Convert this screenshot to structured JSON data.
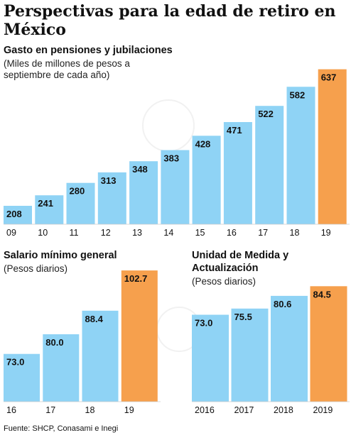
{
  "title": "Perspectivas para la edad de retiro en México",
  "colors": {
    "bar": "#8fd3f5",
    "highlight": "#f6a04d",
    "text": "#111111"
  },
  "source": "Fuente: SHCP, Conasami e Inegi",
  "chart_data": [
    {
      "type": "bar",
      "title": "Gasto en pensiones y jubilaciones",
      "subtitle": "(Miles de millones de pesos a septiembre de cada año)",
      "categories": [
        "09",
        "10",
        "11",
        "12",
        "13",
        "14",
        "15",
        "16",
        "17",
        "18",
        "19"
      ],
      "values": [
        208,
        241,
        280,
        313,
        348,
        383,
        428,
        471,
        522,
        582,
        637
      ],
      "highlight": "19",
      "ylim": [
        150,
        645
      ],
      "grid": false
    },
    {
      "type": "bar",
      "title": "Salario mínimo general",
      "subtitle": "(Pesos diarios)",
      "categories": [
        "16",
        "17",
        "18",
        "19"
      ],
      "values": [
        73.0,
        80.0,
        88.4,
        102.7
      ],
      "labels": [
        "73.0",
        "80.0",
        "88.4",
        "102.7"
      ],
      "highlight": "19",
      "ylim": [
        56,
        104
      ],
      "grid": false
    },
    {
      "type": "bar",
      "title": "Unidad de Medida y Actualización",
      "subtitle": "(Pesos diarios)",
      "categories": [
        "2016",
        "2017",
        "2018",
        "2019"
      ],
      "values": [
        73.0,
        75.5,
        80.6,
        84.5
      ],
      "labels": [
        "73.0",
        "75.5",
        "80.6",
        "84.5"
      ],
      "highlight": "2019",
      "ylim": [
        38,
        86
      ],
      "grid": false
    }
  ]
}
